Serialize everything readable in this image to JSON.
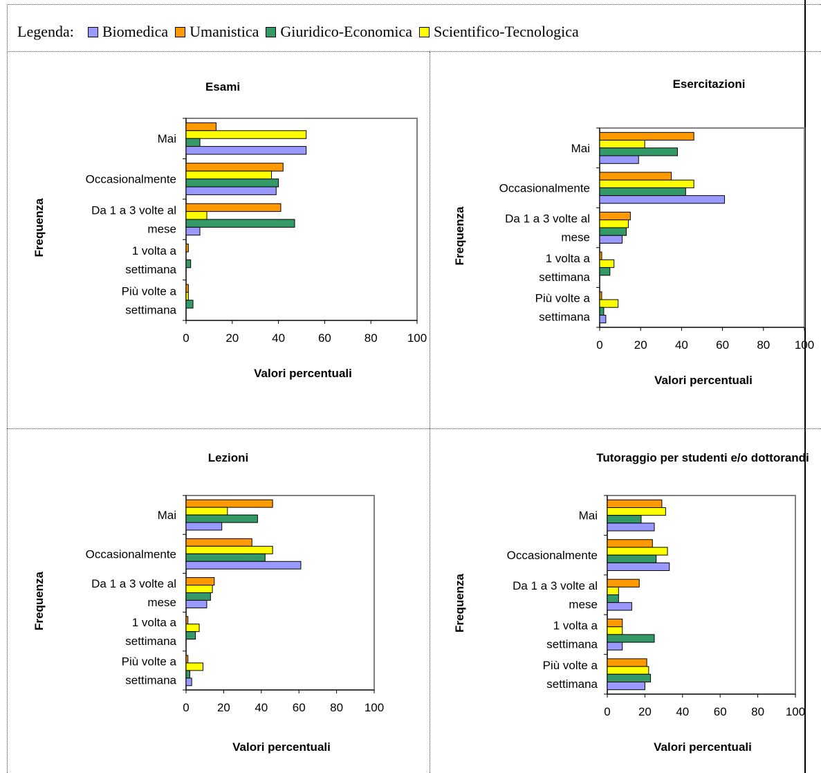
{
  "legend": {
    "title": "Legenda:",
    "items": [
      {
        "label": "Biomedica",
        "color": "#9999ff"
      },
      {
        "label": "Umanistica",
        "color": "#ff9900"
      },
      {
        "label": "Giuridico-Economica",
        "color": "#339966"
      },
      {
        "label": "Scientifico-Tecnologica",
        "color": "#ffff00"
      }
    ]
  },
  "chart_data": [
    {
      "type": "bar",
      "orientation": "horizontal",
      "title": "Esami",
      "xlabel": "Valori percentuali",
      "ylabel": "Frequenza",
      "xlim": [
        0,
        100
      ],
      "xticks": [
        "0",
        "20",
        "40",
        "60",
        "80",
        "100"
      ],
      "categories": [
        [
          "Mai"
        ],
        [
          "Occasionalmente"
        ],
        [
          "Da 1 a 3 volte al",
          "mese"
        ],
        [
          "1 volta a",
          "settimana"
        ],
        [
          "Più volte a",
          "settimana"
        ]
      ],
      "series": [
        {
          "name": "Umanistica",
          "values": [
            13,
            42,
            41,
            1,
            1
          ]
        },
        {
          "name": "Scientifico-Tecnologica",
          "values": [
            52,
            37,
            9,
            0,
            1
          ]
        },
        {
          "name": "Giuridico-Economica",
          "values": [
            6,
            40,
            47,
            2,
            3
          ]
        },
        {
          "name": "Biomedica",
          "values": [
            52,
            39,
            6,
            0,
            0
          ]
        }
      ]
    },
    {
      "type": "bar",
      "orientation": "horizontal",
      "title": "Esercitazioni",
      "xlabel": "Valori percentuali",
      "ylabel": "Frequenza",
      "xlim": [
        0,
        100
      ],
      "xticks": [
        "0",
        "20",
        "40",
        "60",
        "80",
        "100"
      ],
      "categories": [
        [
          "Mai"
        ],
        [
          "Occasionalmente"
        ],
        [
          "Da 1 a 3 volte al",
          "mese"
        ],
        [
          "1 volta a",
          "settimana"
        ],
        [
          "Più volte a",
          "settimana"
        ]
      ],
      "series": [
        {
          "name": "Umanistica",
          "values": [
            46,
            35,
            15,
            1,
            1
          ]
        },
        {
          "name": "Scientifico-Tecnologica",
          "values": [
            22,
            46,
            14,
            7,
            9
          ]
        },
        {
          "name": "Giuridico-Economica",
          "values": [
            38,
            42,
            13,
            5,
            2
          ]
        },
        {
          "name": "Biomedica",
          "values": [
            19,
            61,
            11,
            0,
            3
          ]
        }
      ]
    },
    {
      "type": "bar",
      "orientation": "horizontal",
      "title": "Lezioni",
      "xlabel": "Valori percentuali",
      "ylabel": "Frequenza",
      "xlim": [
        0,
        100
      ],
      "xticks": [
        "0",
        "20",
        "40",
        "60",
        "80",
        "100"
      ],
      "categories": [
        [
          "Mai"
        ],
        [
          "Occasionalmente"
        ],
        [
          "Da 1 a 3 volte al",
          "mese"
        ],
        [
          "1 volta a",
          "settimana"
        ],
        [
          "Più volte a",
          "settimana"
        ]
      ],
      "series": [
        {
          "name": "Umanistica",
          "values": [
            46,
            35,
            15,
            1,
            1
          ]
        },
        {
          "name": "Scientifico-Tecnologica",
          "values": [
            22,
            46,
            14,
            7,
            9
          ]
        },
        {
          "name": "Giuridico-Economica",
          "values": [
            38,
            42,
            13,
            5,
            2
          ]
        },
        {
          "name": "Biomedica",
          "values": [
            19,
            61,
            11,
            0,
            3
          ]
        }
      ]
    },
    {
      "type": "bar",
      "orientation": "horizontal",
      "title": "Tutoraggio per studenti e/o dottorandi",
      "xlabel": "Valori percentuali",
      "ylabel": "Frequenza",
      "xlim": [
        0,
        100
      ],
      "xticks": [
        "0",
        "20",
        "40",
        "60",
        "80",
        "100"
      ],
      "categories": [
        [
          "Mai"
        ],
        [
          "Occasionalmente"
        ],
        [
          "Da 1 a 3 volte al",
          "mese"
        ],
        [
          "1 volta a",
          "settimana"
        ],
        [
          "Più volte a",
          "settimana"
        ]
      ],
      "series": [
        {
          "name": "Umanistica",
          "values": [
            29,
            24,
            17,
            8,
            21
          ]
        },
        {
          "name": "Scientifico-Tecnologica",
          "values": [
            31,
            32,
            6,
            8,
            22
          ]
        },
        {
          "name": "Giuridico-Economica",
          "values": [
            18,
            26,
            6,
            25,
            23
          ]
        },
        {
          "name": "Biomedica",
          "values": [
            25,
            33,
            13,
            8,
            20
          ]
        }
      ]
    }
  ]
}
